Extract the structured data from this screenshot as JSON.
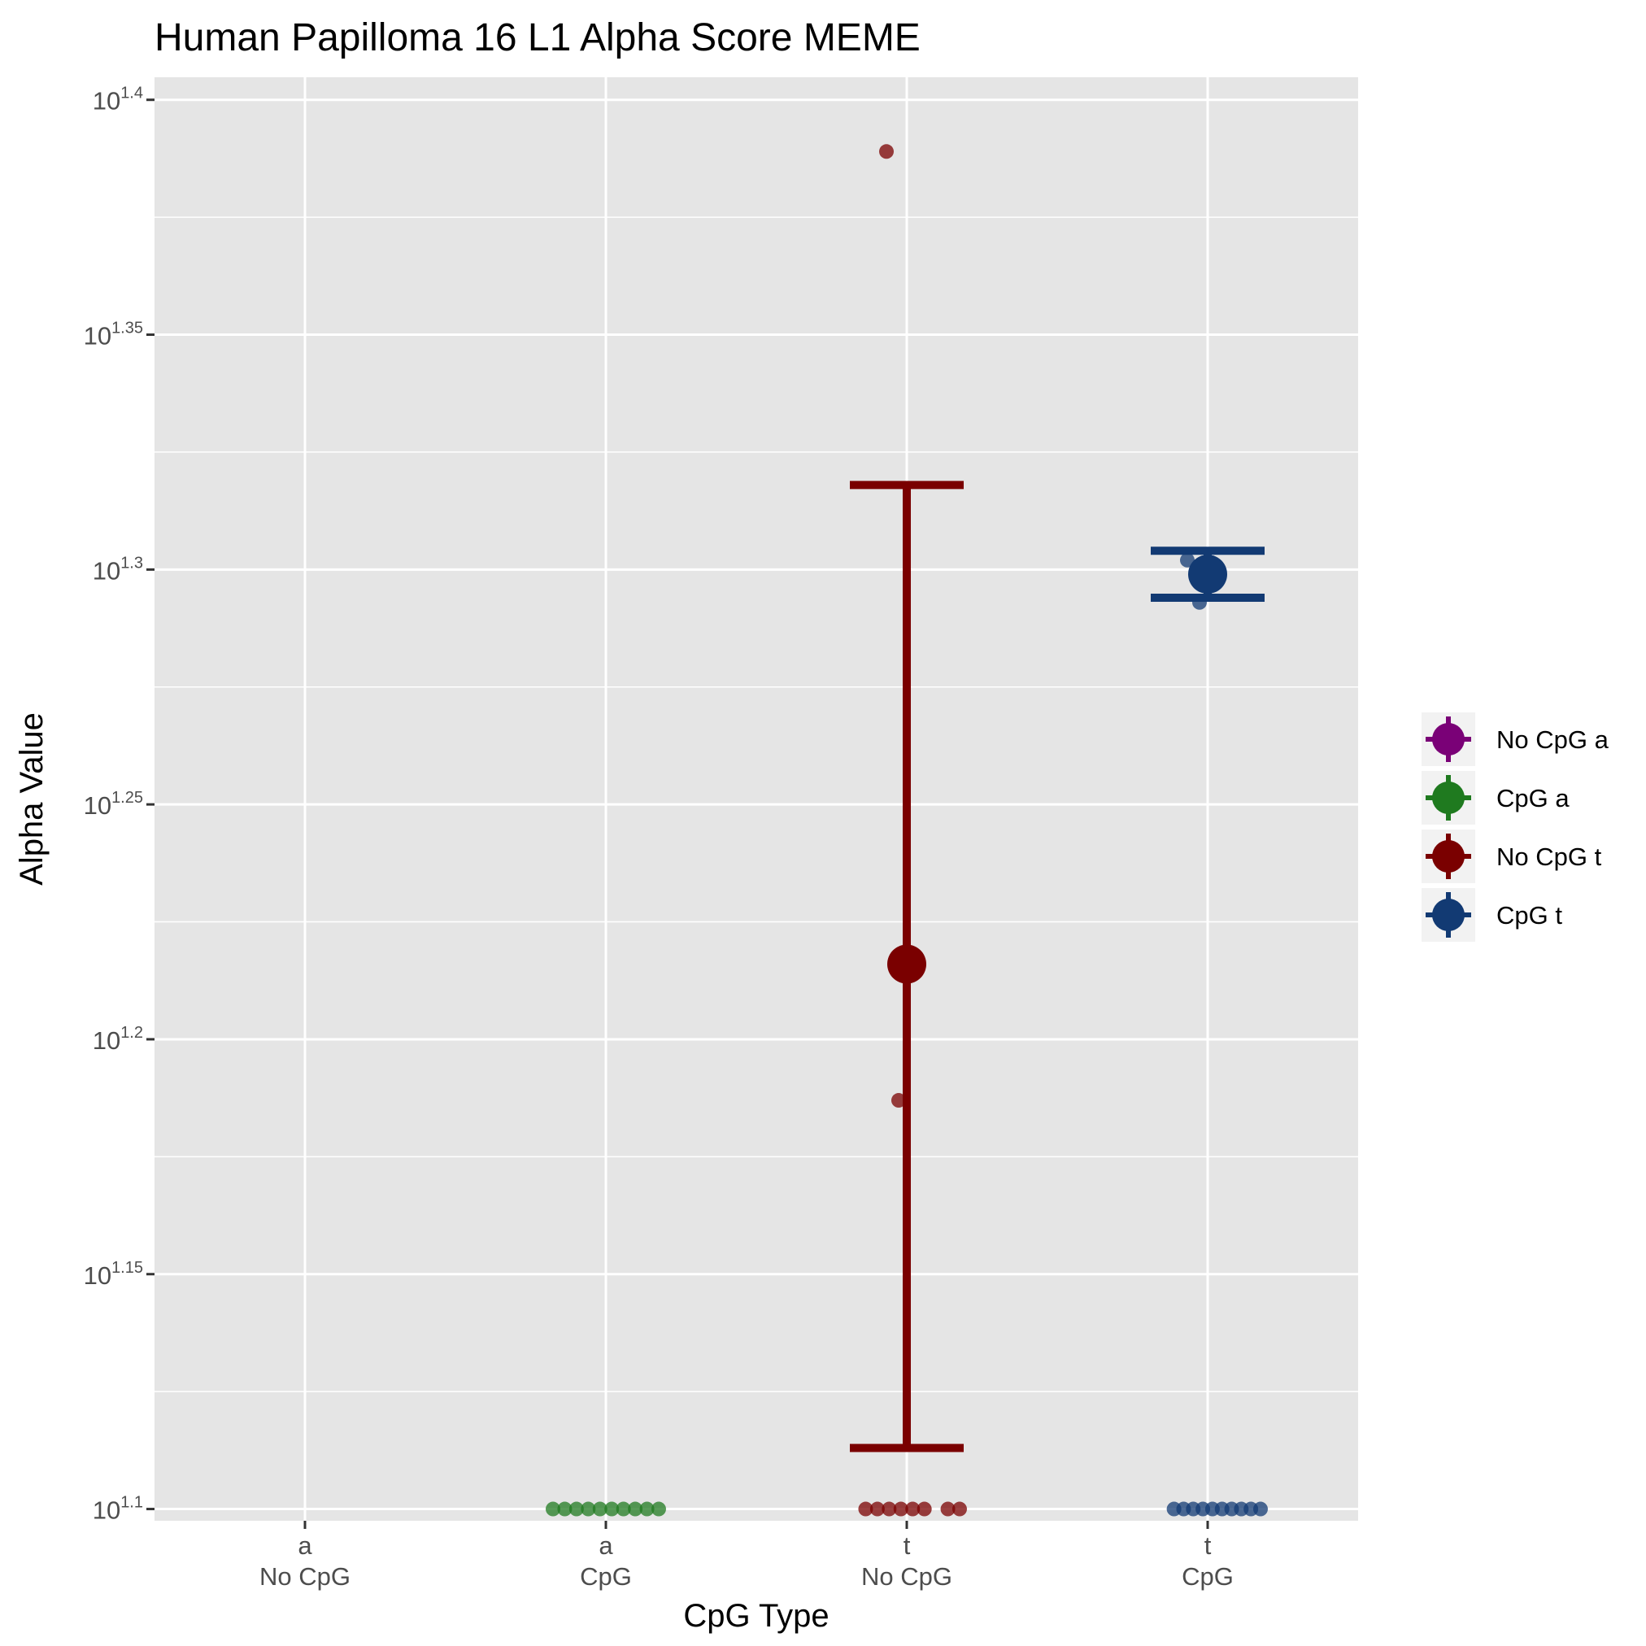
{
  "chart_data": {
    "type": "scatter",
    "title": "Human Papilloma 16 L1 Alpha Score MEME",
    "xlabel": "CpG Type",
    "ylabel": "Alpha Value",
    "y_scale": "log10",
    "ylim_exponent": [
      1.1,
      1.4
    ],
    "y_ticks": [
      {
        "base": "10",
        "exp": "1.1",
        "value": 1.1
      },
      {
        "base": "10",
        "exp": "1.15",
        "value": 1.15
      },
      {
        "base": "10",
        "exp": "1.2",
        "value": 1.2
      },
      {
        "base": "10",
        "exp": "1.25",
        "value": 1.25
      },
      {
        "base": "10",
        "exp": "1.3",
        "value": 1.3
      },
      {
        "base": "10",
        "exp": "1.35",
        "value": 1.35
      },
      {
        "base": "10",
        "exp": "1.4",
        "value": 1.4
      }
    ],
    "categories": [
      {
        "line1": "a",
        "line2": "No CpG"
      },
      {
        "line1": "a",
        "line2": "CpG"
      },
      {
        "line1": "t",
        "line2": "No CpG"
      },
      {
        "line1": "t",
        "line2": "CpG"
      }
    ],
    "grid": true,
    "legend_position": "right",
    "series": [
      {
        "name": "No CpG a",
        "color": "#7a0177",
        "category": 0,
        "points": [],
        "mean": null,
        "error_low": null,
        "error_high": null
      },
      {
        "name": "CpG a",
        "color": "#1f7a1f",
        "category": 1,
        "points": [
          1.1,
          1.1,
          1.1,
          1.1,
          1.1,
          1.1,
          1.1,
          1.1,
          1.1,
          1.1
        ],
        "mean": null,
        "error_low": null,
        "error_high": null
      },
      {
        "name": "No CpG t",
        "color": "#7a0000",
        "category": 2,
        "points": [
          1.389,
          1.187,
          1.1,
          1.1,
          1.1,
          1.1,
          1.1,
          1.1,
          1.1,
          1.1
        ],
        "mean": 1.216,
        "error_low": 1.113,
        "error_high": 1.318
      },
      {
        "name": "CpG t",
        "color": "#123a73",
        "category": 3,
        "points": [
          1.302,
          1.293,
          1.1,
          1.1,
          1.1,
          1.1,
          1.1,
          1.1,
          1.1,
          1.1,
          1.1,
          1.1
        ],
        "mean": 1.299,
        "error_low": 1.294,
        "error_high": 1.304
      }
    ]
  }
}
